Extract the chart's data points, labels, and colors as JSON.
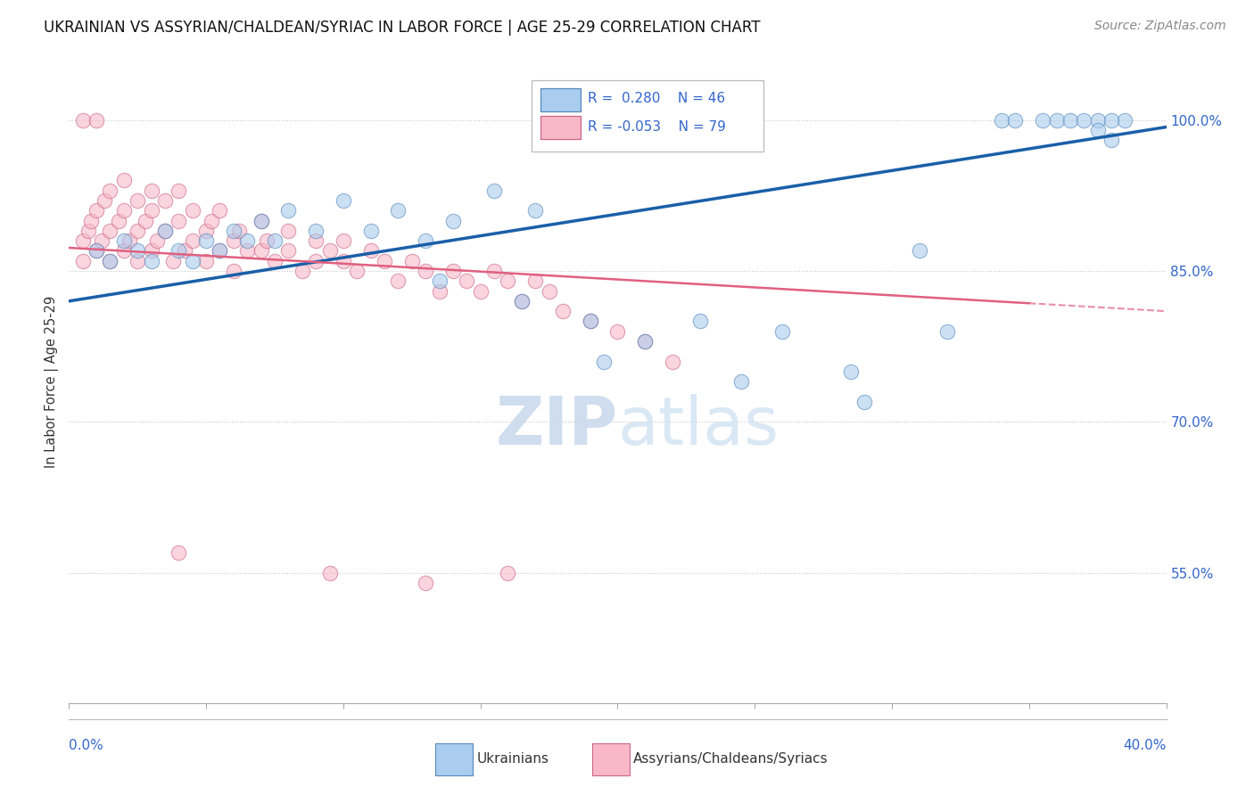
{
  "title": "UKRAINIAN VS ASSYRIAN/CHALDEAN/SYRIAC IN LABOR FORCE | AGE 25-29 CORRELATION CHART",
  "source": "Source: ZipAtlas.com",
  "ylabel": "In Labor Force | Age 25-29",
  "ytick_vals": [
    0.55,
    0.7,
    0.85,
    1.0
  ],
  "ytick_labels": [
    "55.0%",
    "70.0%",
    "85.0%",
    "100.0%"
  ],
  "xlim": [
    0.0,
    0.4
  ],
  "ylim": [
    0.42,
    1.06
  ],
  "R_blue": 0.28,
  "N_blue": 46,
  "R_pink": -0.053,
  "N_pink": 79,
  "blue_line_y0": 0.82,
  "blue_line_y1": 0.993,
  "pink_line_solid_x0": 0.0,
  "pink_line_solid_x1": 0.35,
  "pink_line_y0": 0.873,
  "pink_line_y1": 0.81,
  "pink_line_dash_x0": 0.35,
  "pink_line_dash_x1": 0.4,
  "pink_line_dash_y0": 0.81,
  "pink_line_dash_y1": 0.801,
  "blue_x": [
    0.01,
    0.015,
    0.02,
    0.025,
    0.03,
    0.035,
    0.04,
    0.045,
    0.05,
    0.055,
    0.06,
    0.065,
    0.07,
    0.075,
    0.08,
    0.09,
    0.1,
    0.11,
    0.12,
    0.13,
    0.14,
    0.155,
    0.17,
    0.19,
    0.21,
    0.23,
    0.26,
    0.285,
    0.31,
    0.34,
    0.345,
    0.355,
    0.36,
    0.365,
    0.37,
    0.375,
    0.38,
    0.385,
    0.38,
    0.375,
    0.29,
    0.32,
    0.245,
    0.195,
    0.165,
    0.135
  ],
  "blue_y": [
    0.87,
    0.86,
    0.88,
    0.87,
    0.86,
    0.89,
    0.87,
    0.86,
    0.88,
    0.87,
    0.89,
    0.88,
    0.9,
    0.88,
    0.91,
    0.89,
    0.92,
    0.89,
    0.91,
    0.88,
    0.9,
    0.93,
    0.91,
    0.8,
    0.78,
    0.8,
    0.79,
    0.75,
    0.87,
    1.0,
    1.0,
    1.0,
    1.0,
    1.0,
    1.0,
    1.0,
    0.98,
    1.0,
    1.0,
    0.99,
    0.72,
    0.79,
    0.74,
    0.76,
    0.82,
    0.84
  ],
  "pink_x": [
    0.005,
    0.005,
    0.007,
    0.008,
    0.01,
    0.01,
    0.012,
    0.013,
    0.015,
    0.015,
    0.015,
    0.018,
    0.02,
    0.02,
    0.02,
    0.022,
    0.025,
    0.025,
    0.025,
    0.028,
    0.03,
    0.03,
    0.03,
    0.032,
    0.035,
    0.035,
    0.038,
    0.04,
    0.04,
    0.042,
    0.045,
    0.045,
    0.05,
    0.05,
    0.052,
    0.055,
    0.055,
    0.06,
    0.06,
    0.062,
    0.065,
    0.07,
    0.07,
    0.072,
    0.075,
    0.08,
    0.08,
    0.085,
    0.09,
    0.09,
    0.095,
    0.1,
    0.1,
    0.105,
    0.11,
    0.115,
    0.12,
    0.125,
    0.13,
    0.135,
    0.14,
    0.145,
    0.15,
    0.155,
    0.16,
    0.165,
    0.17,
    0.175,
    0.18,
    0.19,
    0.2,
    0.21,
    0.22,
    0.04,
    0.095,
    0.13,
    0.16,
    0.005,
    0.01
  ],
  "pink_y": [
    0.88,
    0.86,
    0.89,
    0.9,
    0.87,
    0.91,
    0.88,
    0.92,
    0.89,
    0.86,
    0.93,
    0.9,
    0.87,
    0.91,
    0.94,
    0.88,
    0.92,
    0.89,
    0.86,
    0.9,
    0.93,
    0.87,
    0.91,
    0.88,
    0.92,
    0.89,
    0.86,
    0.9,
    0.93,
    0.87,
    0.91,
    0.88,
    0.89,
    0.86,
    0.9,
    0.87,
    0.91,
    0.88,
    0.85,
    0.89,
    0.87,
    0.9,
    0.87,
    0.88,
    0.86,
    0.89,
    0.87,
    0.85,
    0.88,
    0.86,
    0.87,
    0.86,
    0.88,
    0.85,
    0.87,
    0.86,
    0.84,
    0.86,
    0.85,
    0.83,
    0.85,
    0.84,
    0.83,
    0.85,
    0.84,
    0.82,
    0.84,
    0.83,
    0.81,
    0.8,
    0.79,
    0.78,
    0.76,
    0.57,
    0.55,
    0.54,
    0.55,
    1.0,
    1.0
  ],
  "bg_color": "#ffffff",
  "blue_dot_face": "#aaccee",
  "blue_dot_edge": "#5588bb",
  "pink_dot_face": "#f8b8c8",
  "pink_dot_edge": "#cc6688",
  "blue_line_color": "#1a5fa8",
  "pink_line_color": "#e06080",
  "grid_color": "#c8c8c8",
  "axis_tick_color": "#3366cc",
  "watermark_color": "#dde8f5",
  "source_color": "#888888",
  "title_color": "#111111"
}
